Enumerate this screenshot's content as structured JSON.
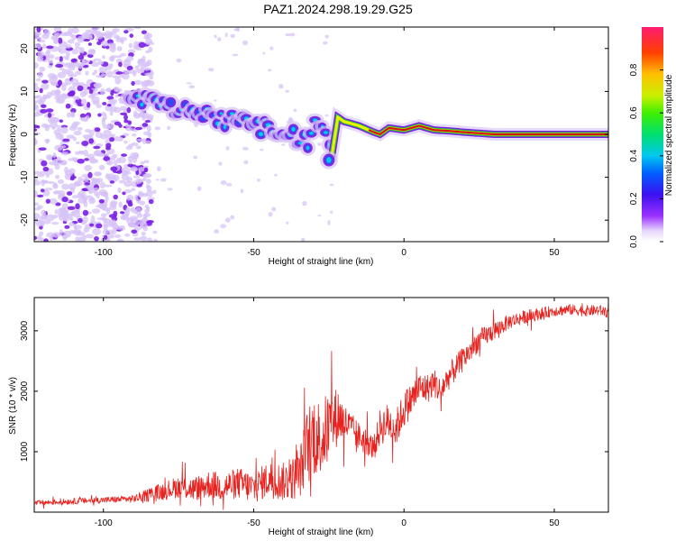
{
  "title": "PAZ1.2024.298.19.29.G25",
  "colors": {
    "snr_line": "#e8231f",
    "ridge_core": "#d41414",
    "ridge_green": "#22d22a",
    "ridge_cyan": "#00c8e8",
    "ridge_blue": "#2a4cf0",
    "speckle_dark": "#7a1fe6",
    "speckle_light": "#d6c2f7"
  },
  "chart_data": [
    {
      "type": "heatmap",
      "title": "PAZ1.2024.298.19.29.G25",
      "xlabel": "Height of straight line (km)",
      "ylabel": "Frequency (Hz)",
      "xlim": [
        -123,
        68
      ],
      "ylim": [
        -25,
        25
      ],
      "xticks": [
        -100,
        -50,
        0,
        50
      ],
      "yticks": [
        -20,
        -10,
        0,
        10,
        20
      ],
      "colorbar": {
        "label": "Normalized spectral amplitude",
        "range": [
          0,
          1
        ],
        "ticks": [
          0.0,
          0.2,
          0.4,
          0.6,
          0.8
        ]
      },
      "ridge": {
        "x": [
          -92,
          -85,
          -80,
          -75,
          -70,
          -65,
          -60,
          -55,
          -50,
          -45,
          -40,
          -35,
          -32,
          -29,
          -27,
          -24,
          -22,
          -20,
          -15,
          -10,
          -8,
          -5,
          0,
          5,
          10,
          15,
          20,
          30,
          40,
          50,
          60,
          68
        ],
        "frequency": [
          10,
          8,
          7,
          6,
          5,
          4.5,
          3,
          3.5,
          2,
          1.5,
          1,
          -1,
          -2,
          4,
          2,
          -5,
          4,
          3,
          2,
          0.5,
          0,
          1.5,
          1,
          2,
          1,
          0.8,
          0.5,
          0,
          0,
          0,
          0,
          0
        ]
      },
      "noise_region": {
        "x": [
          -123,
          -84
        ],
        "frequency": [
          -25,
          25
        ]
      }
    },
    {
      "type": "line",
      "title": "",
      "xlabel": "Height of straight line (km)",
      "ylabel": "SNR (10 * v/v)",
      "xlim": [
        -123,
        68
      ],
      "ylim": [
        0,
        3550
      ],
      "xticks": [
        -100,
        -50,
        0,
        50
      ],
      "yticks": [
        1000,
        2000,
        3000
      ],
      "series": [
        {
          "x": [
            -123,
            -110,
            -100,
            -90,
            -82,
            -75,
            -70,
            -65,
            -60,
            -55,
            -50,
            -45,
            -40,
            -35,
            -32,
            -30,
            -28,
            -25,
            -22,
            -20,
            -17,
            -15,
            -12,
            -10,
            -8,
            -5,
            -3,
            0,
            3,
            5,
            8,
            10,
            12,
            15,
            20,
            25,
            30,
            35,
            40,
            45,
            50,
            55,
            60,
            65,
            68
          ],
          "y": [
            150,
            180,
            200,
            220,
            320,
            420,
            380,
            460,
            420,
            480,
            400,
            550,
            500,
            600,
            1100,
            1300,
            1200,
            1400,
            1600,
            1500,
            1350,
            1250,
            1150,
            1050,
            1400,
            1500,
            1350,
            1700,
            1900,
            2050,
            2050,
            2150,
            2000,
            2250,
            2550,
            2850,
            3000,
            3150,
            3230,
            3280,
            3330,
            3350,
            3330,
            3340,
            3300
          ],
          "noise": [
            40,
            50,
            50,
            60,
            140,
            180,
            200,
            230,
            240,
            260,
            260,
            300,
            320,
            380,
            650,
            700,
            650,
            600,
            480,
            320,
            260,
            240,
            220,
            200,
            300,
            320,
            300,
            300,
            280,
            260,
            240,
            240,
            230,
            220,
            200,
            180,
            150,
            120,
            110,
            100,
            90,
            90,
            90,
            90,
            90
          ]
        }
      ]
    }
  ]
}
